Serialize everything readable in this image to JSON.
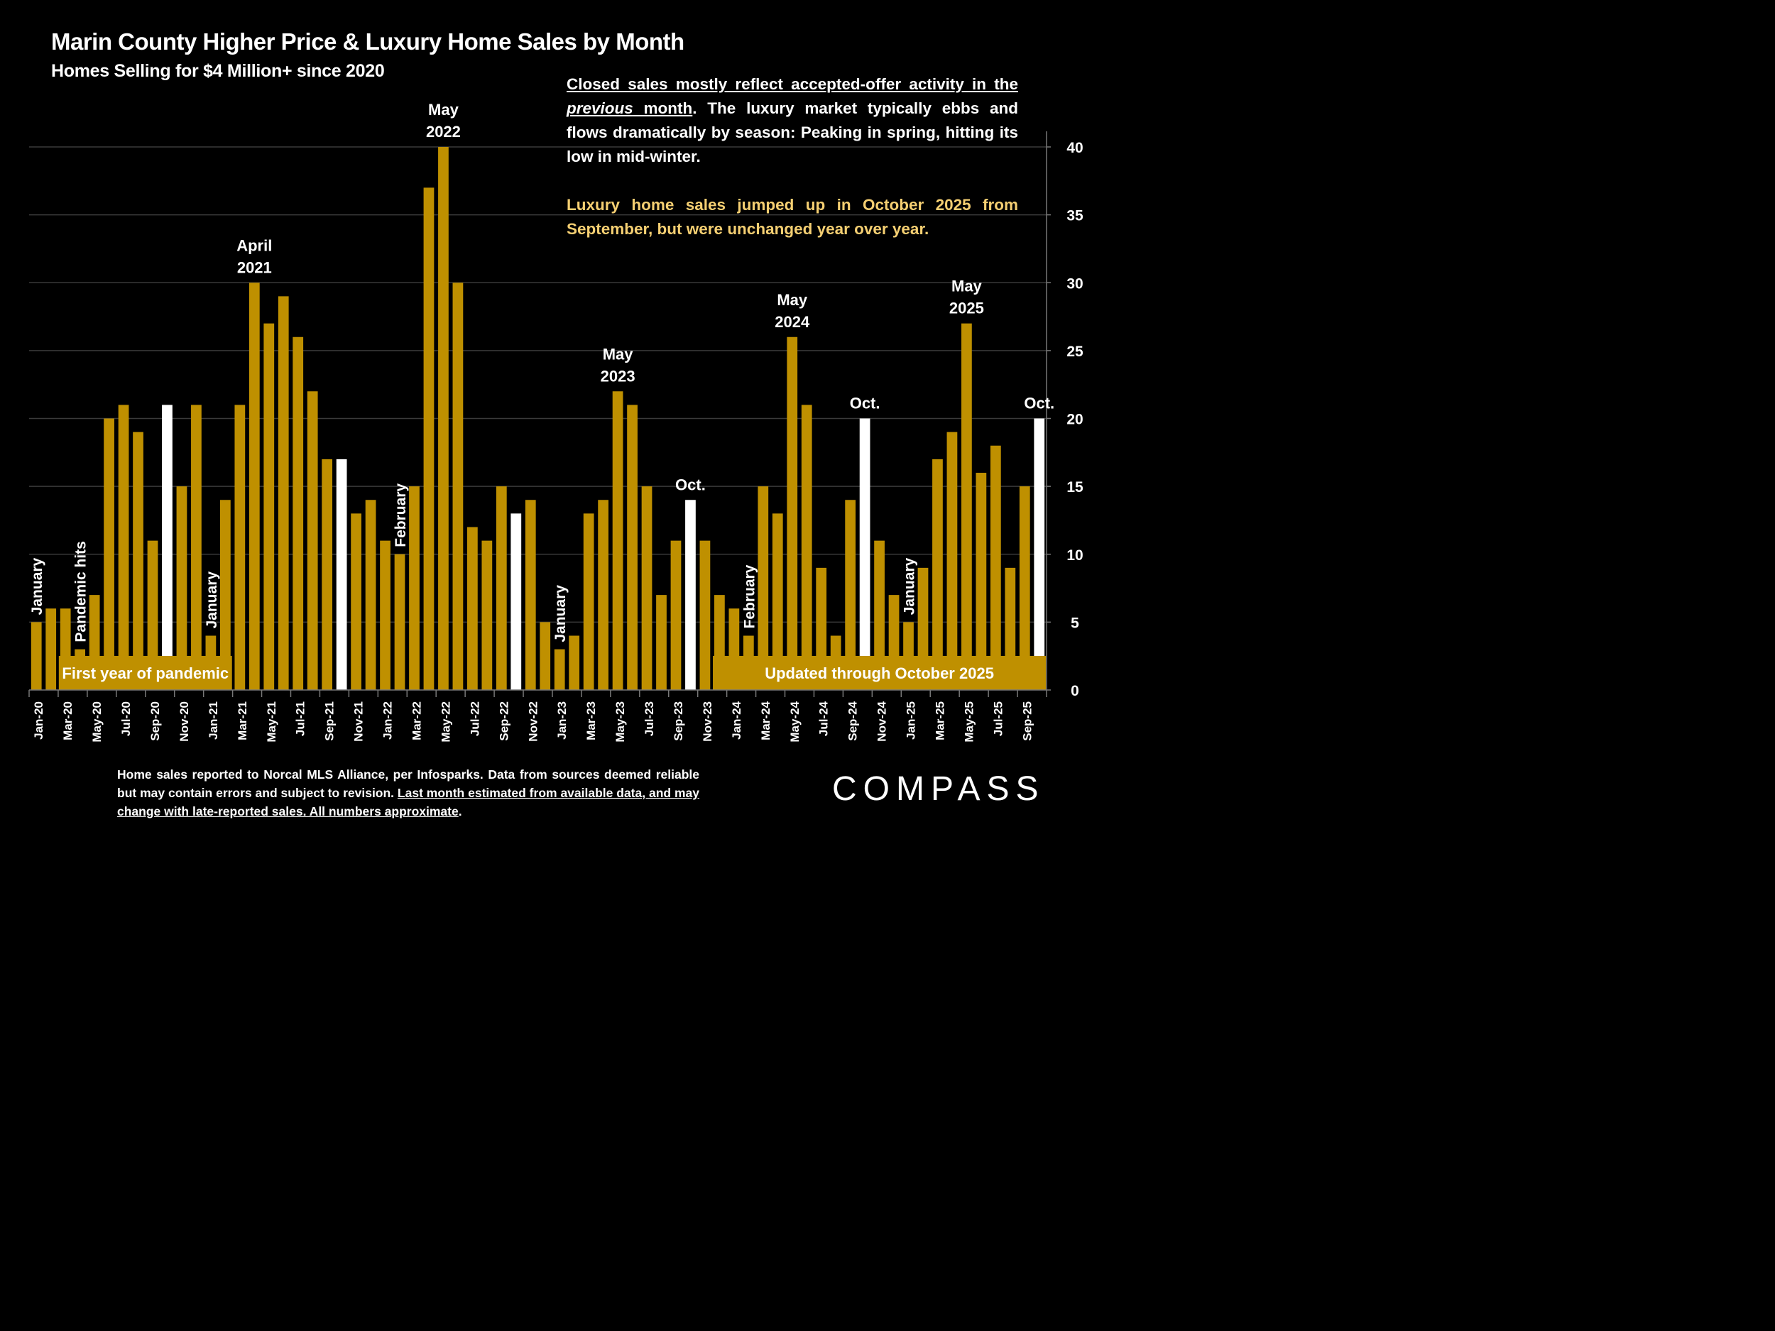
{
  "chart_data": {
    "type": "bar",
    "title": "Marin County Higher Price & Luxury Home Sales by Month",
    "subtitle": "Homes Selling for $4 Million+ since 2020",
    "xlabel": "",
    "ylabel": "",
    "ylim": [
      0,
      40
    ],
    "yticks": [
      0,
      5,
      10,
      15,
      20,
      25,
      30,
      35,
      40
    ],
    "y_axis_side": "right",
    "grid": true,
    "bar_color": "#bf9000",
    "highlight_color": "#ffffff",
    "categories": [
      "Jan-20",
      "Feb-20",
      "Mar-20",
      "Apr-20",
      "May-20",
      "Jun-20",
      "Jul-20",
      "Aug-20",
      "Sep-20",
      "Oct-20",
      "Nov-20",
      "Dec-20",
      "Jan-21",
      "Feb-21",
      "Mar-21",
      "Apr-21",
      "May-21",
      "Jun-21",
      "Jul-21",
      "Aug-21",
      "Sep-21",
      "Oct-21",
      "Nov-21",
      "Dec-21",
      "Jan-22",
      "Feb-22",
      "Mar-22",
      "Apr-22",
      "May-22",
      "Jun-22",
      "Jul-22",
      "Aug-22",
      "Sep-22",
      "Oct-22",
      "Nov-22",
      "Dec-22",
      "Jan-23",
      "Feb-23",
      "Mar-23",
      "Apr-23",
      "May-23",
      "Jun-23",
      "Jul-23",
      "Aug-23",
      "Sep-23",
      "Oct-23",
      "Nov-23",
      "Dec-23",
      "Jan-24",
      "Feb-24",
      "Mar-24",
      "Apr-24",
      "May-24",
      "Jun-24",
      "Jul-24",
      "Aug-24",
      "Sep-24",
      "Oct-24",
      "Nov-24",
      "Dec-24",
      "Jan-25",
      "Feb-25",
      "Mar-25",
      "Apr-25",
      "May-25",
      "Jun-25",
      "Jul-25",
      "Aug-25",
      "Sep-25",
      "Oct-25"
    ],
    "values": [
      5,
      6,
      6,
      3,
      7,
      20,
      21,
      19,
      11,
      21,
      15,
      21,
      4,
      14,
      21,
      30,
      27,
      29,
      26,
      22,
      17,
      17,
      13,
      14,
      11,
      10,
      15,
      37,
      40,
      30,
      12,
      11,
      15,
      13,
      14,
      5,
      3,
      4,
      13,
      14,
      22,
      21,
      15,
      7,
      11,
      14,
      11,
      7,
      6,
      4,
      15,
      13,
      26,
      21,
      9,
      4,
      14,
      20,
      11,
      7,
      5,
      9,
      17,
      19,
      27,
      16,
      18,
      9,
      15,
      20
    ],
    "highlighted": [
      "Oct-20",
      "Oct-21",
      "Oct-22",
      "Oct-23",
      "Oct-24",
      "Oct-25"
    ],
    "xtick_labels": [
      "Jan-20",
      "Mar-20",
      "May-20",
      "Jul-20",
      "Sep-20",
      "Nov-20",
      "Jan-21",
      "Mar-21",
      "May-21",
      "Jul-21",
      "Sep-21",
      "Nov-21",
      "Jan-22",
      "Mar-22",
      "May-22",
      "Jul-22",
      "Sep-22",
      "Nov-22",
      "Jan-23",
      "Mar-23",
      "May-23",
      "Jul-23",
      "Sep-23",
      "Nov-23",
      "Jan-24",
      "Mar-24",
      "May-24",
      "Jul-24",
      "Sep-24",
      "Nov-24",
      "Jan-25",
      "Mar-25",
      "May-25",
      "Jul-25",
      "Sep-25"
    ],
    "annotations": [
      {
        "text": "January",
        "at": "Jan-20",
        "rotated": true
      },
      {
        "text": "Pandemic hits",
        "at": "Apr-20",
        "rotated": true
      },
      {
        "text": "January",
        "at": "Jan-21",
        "rotated": true
      },
      {
        "text": "April 2021",
        "at": "Apr-21",
        "rotated": false
      },
      {
        "text": "February",
        "at": "Feb-22",
        "rotated": true
      },
      {
        "text": "May 2022",
        "at": "May-22",
        "rotated": false
      },
      {
        "text": "January",
        "at": "Jan-23",
        "rotated": true
      },
      {
        "text": "May 2023",
        "at": "May-23",
        "rotated": false
      },
      {
        "text": "Oct.",
        "at": "Oct-23",
        "rotated": false
      },
      {
        "text": "February",
        "at": "Feb-24",
        "rotated": true
      },
      {
        "text": "May 2024",
        "at": "May-24",
        "rotated": false
      },
      {
        "text": "Oct.",
        "at": "Oct-24",
        "rotated": false
      },
      {
        "text": "January",
        "at": "Jan-25",
        "rotated": true
      },
      {
        "text": "May 2025",
        "at": "May-25",
        "rotated": false
      },
      {
        "text": "Oct.",
        "at": "Oct-25",
        "rotated": false
      }
    ],
    "banners": [
      {
        "text": "First year of pandemic",
        "from": "Mar-20",
        "to": "Feb-21"
      },
      {
        "text": "Updated through October 2025",
        "from": "Dec-23",
        "to": "Oct-25"
      }
    ]
  },
  "note": {
    "p1_underlined_a": "Closed sales mostly reflect accepted-offer activity in the ",
    "p1_italic": "previous",
    "p1_underlined_b": " month",
    "p1_rest": ". The luxury market typically ebbs and flows dramatically by season: Peaking in spring, hitting its low in mid-winter.",
    "p2": "Luxury home sales jumped up in October 2025 from September, but were unchanged year over year."
  },
  "footer": {
    "plain": "Home sales reported to Norcal MLS Alliance, per Infosparks. Data from sources deemed reliable but may contain errors and subject to revision.  ",
    "underlined": "Last month estimated from available data, and may change with late-reported sales. All numbers approximate",
    "end": "."
  },
  "logo": "COMPASS"
}
